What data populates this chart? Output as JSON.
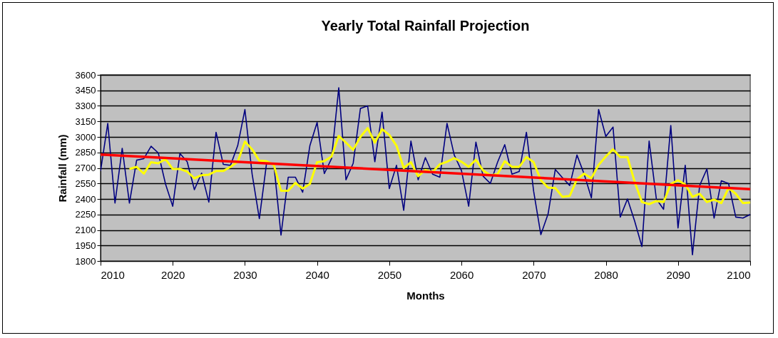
{
  "chart_data": {
    "type": "line",
    "title": "Yearly Total Rainfall Projection",
    "xlabel": "Months",
    "ylabel": "Rainfall (mm)",
    "xlim": [
      2010,
      2100
    ],
    "xticks": [
      2010,
      2020,
      2030,
      2040,
      2050,
      2060,
      2070,
      2080,
      2090,
      2100
    ],
    "ylim": [
      1800,
      3600
    ],
    "yticks": [
      1800,
      1950,
      2100,
      2250,
      2400,
      2550,
      2700,
      2850,
      3000,
      3150,
      3300,
      3450,
      3600
    ],
    "grid": "y",
    "legend": false,
    "marker": "none",
    "line_style": "solid",
    "series": [
      {
        "color": "#000080",
        "x": [
          2010,
          2011,
          2012,
          2013,
          2014,
          2015,
          2016,
          2017,
          2018,
          2019,
          2020,
          2021,
          2022,
          2023,
          2024,
          2025,
          2026,
          2027,
          2028,
          2029,
          2030,
          2031,
          2032,
          2033,
          2034,
          2035,
          2036,
          2037,
          2038,
          2039,
          2040,
          2041,
          2042,
          2043,
          2044,
          2045,
          2046,
          2047,
          2048,
          2049,
          2050,
          2051,
          2052,
          2053,
          2054,
          2055,
          2056,
          2057,
          2058,
          2059,
          2060,
          2061,
          2062,
          2063,
          2064,
          2065,
          2066,
          2067,
          2068,
          2069,
          2070,
          2071,
          2072,
          2073,
          2074,
          2075,
          2076,
          2077,
          2078,
          2079,
          2080,
          2081,
          2082,
          2083,
          2084,
          2085,
          2086,
          2087,
          2088,
          2089,
          2090,
          2091,
          2092,
          2093,
          2094,
          2095,
          2096,
          2097,
          2098,
          2099,
          2100
        ],
        "values": [
          2670,
          3130,
          2360,
          2890,
          2360,
          2775,
          2790,
          2910,
          2845,
          2545,
          2330,
          2840,
          2760,
          2490,
          2650,
          2370,
          3045,
          2735,
          2725,
          2915,
          3265,
          2640,
          2210,
          2745,
          2740,
          2050,
          2610,
          2610,
          2465,
          2915,
          3140,
          2645,
          2790,
          3475,
          2585,
          2745,
          3275,
          3300,
          2760,
          3240,
          2500,
          2725,
          2290,
          2960,
          2585,
          2800,
          2640,
          2610,
          3130,
          2825,
          2675,
          2330,
          2950,
          2620,
          2550,
          2755,
          2925,
          2640,
          2665,
          3045,
          2475,
          2055,
          2255,
          2685,
          2605,
          2530,
          2825,
          2640,
          2410,
          3265,
          3005,
          3095,
          2225,
          2400,
          2185,
          1940,
          2960,
          2400,
          2300,
          3110,
          2120,
          2725,
          1860,
          2530,
          2690,
          2215,
          2575,
          2550,
          2225,
          2215,
          2250
        ]
      },
      {
        "color": "#ffff00",
        "x": [
          2014,
          2015,
          2016,
          2017,
          2018,
          2019,
          2020,
          2021,
          2022,
          2023,
          2024,
          2025,
          2026,
          2027,
          2028,
          2029,
          2030,
          2031,
          2032,
          2033,
          2034,
          2035,
          2036,
          2037,
          2038,
          2039,
          2040,
          2041,
          2042,
          2043,
          2044,
          2045,
          2046,
          2047,
          2048,
          2049,
          2050,
          2051,
          2052,
          2053,
          2054,
          2055,
          2056,
          2057,
          2058,
          2059,
          2060,
          2061,
          2062,
          2063,
          2064,
          2065,
          2066,
          2067,
          2068,
          2069,
          2070,
          2071,
          2072,
          2073,
          2074,
          2075,
          2076,
          2077,
          2078,
          2079,
          2080,
          2081,
          2082,
          2083,
          2084,
          2085,
          2086,
          2087,
          2088,
          2089,
          2090,
          2091,
          2092,
          2093,
          2094,
          2095,
          2096,
          2097,
          2098,
          2099,
          2100
        ],
        "values": [
          2690,
          2710,
          2645,
          2755,
          2745,
          2785,
          2690,
          2690,
          2665,
          2600,
          2630,
          2635,
          2670,
          2670,
          2710,
          2760,
          2955,
          2880,
          2770,
          2765,
          2730,
          2480,
          2480,
          2555,
          2500,
          2545,
          2755,
          2765,
          2810,
          3010,
          2945,
          2875,
          3000,
          3085,
          2945,
          3075,
          3020,
          2915,
          2700,
          2755,
          2620,
          2680,
          2660,
          2735,
          2760,
          2795,
          2760,
          2710,
          2780,
          2675,
          2630,
          2640,
          2765,
          2710,
          2710,
          2805,
          2755,
          2580,
          2510,
          2505,
          2420,
          2430,
          2590,
          2645,
          2600,
          2730,
          2810,
          2880,
          2805,
          2805,
          2565,
          2370,
          2350,
          2380,
          2370,
          2545,
          2580,
          2540,
          2420,
          2450,
          2370,
          2395,
          2360,
          2505,
          2450,
          2360,
          2365
        ]
      },
      {
        "color": "#ff0000",
        "x": [
          2010,
          2100
        ],
        "values": [
          2830,
          2495
        ]
      }
    ]
  }
}
